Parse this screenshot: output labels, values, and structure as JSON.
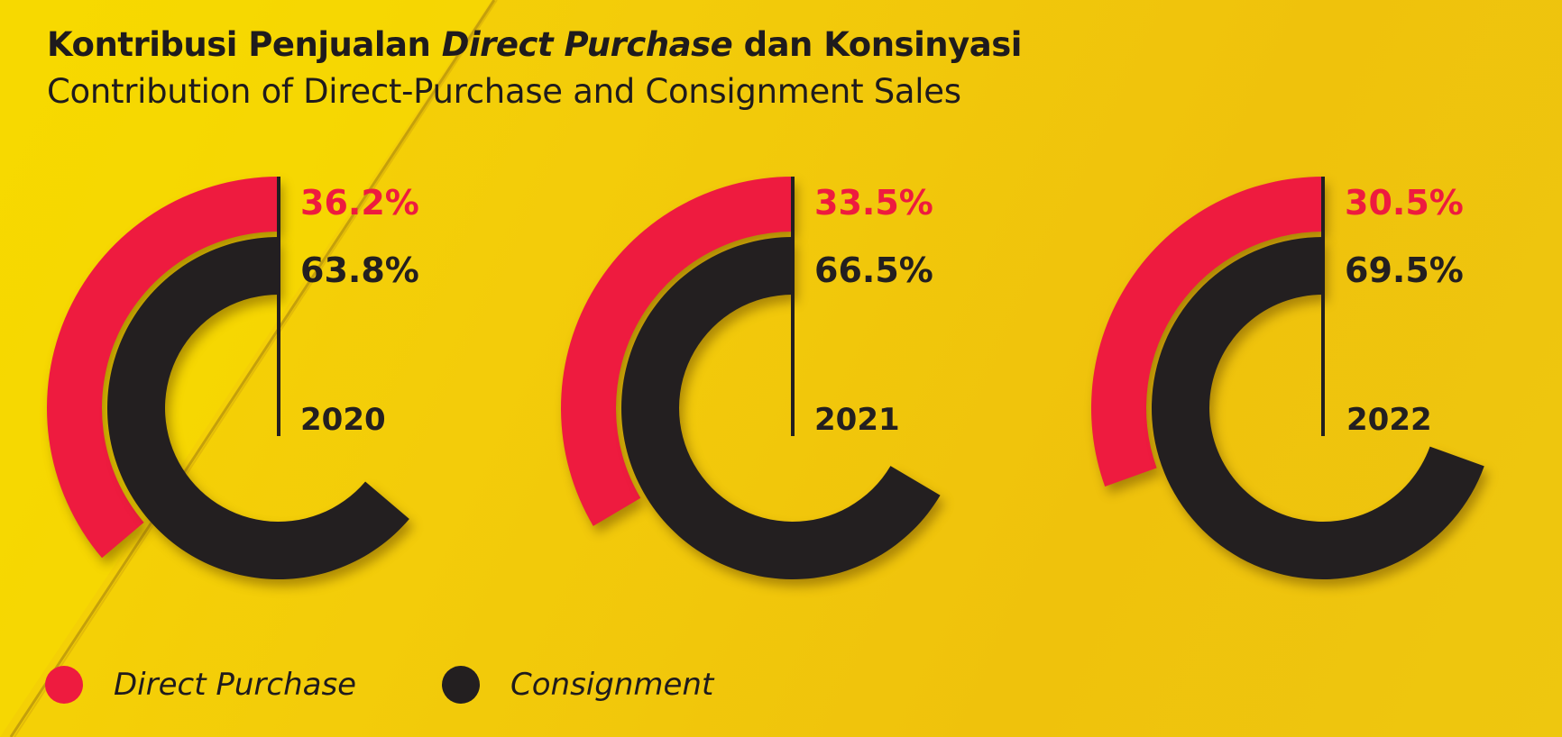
{
  "title": {
    "line1_prefix": "Kontribusi Penjualan ",
    "line1_italic": "Direct Purchase",
    "line1_suffix": " dan Konsinyasi",
    "line2": "Contribution of Direct-Purchase and Consignment Sales"
  },
  "colors": {
    "direct_purchase": "#ee1b3f",
    "consignment": "#231f20",
    "label_dark": "#231f20",
    "label_red": "#ee1b3f"
  },
  "chart_data": {
    "type": "donut",
    "unit": "%",
    "categories": [
      "2020",
      "2021",
      "2022"
    ],
    "series": [
      {
        "name": "Direct Purchase",
        "values": [
          36.2,
          33.5,
          30.5
        ],
        "labels": [
          "36.2%",
          "33.5%",
          "30.5%"
        ]
      },
      {
        "name": "Consignment",
        "values": [
          63.8,
          66.5,
          69.5
        ],
        "labels": [
          "63.8%",
          "66.5%",
          "69.5%"
        ]
      }
    ],
    "legend": {
      "position": "bottom-left",
      "items": [
        "Direct Purchase",
        "Consignment"
      ]
    }
  }
}
